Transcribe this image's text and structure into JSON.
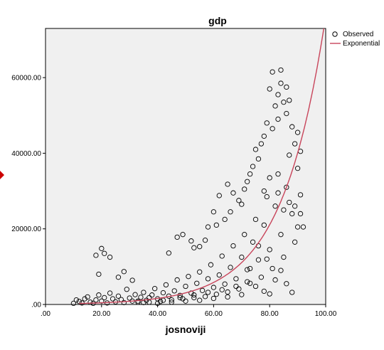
{
  "chart_data": {
    "type": "scatter",
    "title": "gdp",
    "xlabel": "josnoviji",
    "ylabel": "",
    "xlim": [
      0,
      100
    ],
    "ylim": [
      0,
      73000
    ],
    "x_ticks": [
      ".00",
      "20.00",
      "40.00",
      "60.00",
      "80.00",
      "100.00"
    ],
    "y_ticks": [
      ".00",
      "20000.00",
      "40000.00",
      "60000.00"
    ],
    "grid": false,
    "legend_position": "top-right",
    "series": [
      {
        "name": "Observed",
        "kind": "points",
        "marker": "open-circle",
        "color": "#000000",
        "points": [
          [
            12,
            800
          ],
          [
            14,
            1500
          ],
          [
            16,
            600
          ],
          [
            18,
            1200
          ],
          [
            19,
            2500
          ],
          [
            20,
            900
          ],
          [
            21,
            1800
          ],
          [
            22,
            400
          ],
          [
            23,
            3000
          ],
          [
            24,
            1500
          ],
          [
            25,
            700
          ],
          [
            26,
            2200
          ],
          [
            27,
            1300
          ],
          [
            28,
            500
          ],
          [
            29,
            4000
          ],
          [
            30,
            1700
          ],
          [
            31,
            900
          ],
          [
            32,
            2600
          ],
          [
            33,
            600
          ],
          [
            34,
            1900
          ],
          [
            35,
            3200
          ],
          [
            36,
            1100
          ],
          [
            37,
            600
          ],
          [
            38,
            2500
          ],
          [
            39,
            4200
          ],
          [
            40,
            1500
          ],
          [
            41,
            800
          ],
          [
            42,
            3100
          ],
          [
            43,
            5200
          ],
          [
            44,
            2200
          ],
          [
            45,
            1200
          ],
          [
            46,
            3600
          ],
          [
            47,
            6500
          ],
          [
            48,
            2400
          ],
          [
            49,
            1500
          ],
          [
            50,
            4800
          ],
          [
            51,
            7400
          ],
          [
            52,
            3000
          ],
          [
            53,
            1800
          ],
          [
            54,
            5600
          ],
          [
            55,
            8600
          ],
          [
            56,
            3700
          ],
          [
            57,
            2100
          ],
          [
            58,
            6800
          ],
          [
            59,
            10500
          ],
          [
            60,
            4500
          ],
          [
            61,
            2700
          ],
          [
            62,
            7800
          ],
          [
            63,
            12800
          ],
          [
            64,
            5400
          ],
          [
            65,
            3300
          ],
          [
            66,
            9800
          ],
          [
            67,
            15500
          ],
          [
            68,
            6800
          ],
          [
            69,
            4100
          ],
          [
            70,
            12500
          ],
          [
            71,
            18500
          ],
          [
            72,
            9200
          ],
          [
            73,
            5600
          ],
          [
            74,
            16500
          ],
          [
            75,
            22500
          ],
          [
            76,
            11800
          ],
          [
            77,
            7200
          ],
          [
            78,
            21000
          ],
          [
            79,
            28500
          ],
          [
            80,
            14500
          ],
          [
            81,
            9500
          ],
          [
            82,
            26000
          ],
          [
            83,
            34500
          ],
          [
            84,
            18500
          ],
          [
            85,
            12500
          ],
          [
            86,
            31000
          ],
          [
            87,
            39500
          ],
          [
            88,
            24000
          ],
          [
            89,
            16500
          ],
          [
            90,
            36000
          ],
          [
            91,
            29000
          ],
          [
            92,
            20500
          ],
          [
            18,
            13000
          ],
          [
            20,
            14800
          ],
          [
            21,
            13500
          ],
          [
            23,
            12500
          ],
          [
            19,
            8000
          ],
          [
            26,
            7200
          ],
          [
            28,
            8700
          ],
          [
            31,
            6400
          ],
          [
            44,
            13600
          ],
          [
            47,
            17800
          ],
          [
            49,
            18500
          ],
          [
            52,
            16800
          ],
          [
            55,
            15300
          ],
          [
            58,
            20500
          ],
          [
            60,
            24500
          ],
          [
            62,
            28800
          ],
          [
            65,
            31800
          ],
          [
            67,
            29500
          ],
          [
            70,
            26500
          ],
          [
            72,
            32500
          ],
          [
            74,
            36500
          ],
          [
            76,
            38500
          ],
          [
            78,
            44500
          ],
          [
            79,
            48000
          ],
          [
            81,
            46500
          ],
          [
            82,
            52500
          ],
          [
            83,
            55500
          ],
          [
            84,
            58500
          ],
          [
            85,
            53500
          ],
          [
            86,
            57500
          ],
          [
            87,
            54000
          ],
          [
            81,
            61500
          ],
          [
            84,
            62000
          ],
          [
            80,
            57000
          ],
          [
            83,
            49000
          ],
          [
            86,
            50500
          ],
          [
            88,
            47000
          ],
          [
            89,
            42500
          ],
          [
            90,
            45500
          ],
          [
            91,
            40500
          ],
          [
            77,
            42500
          ],
          [
            75,
            41000
          ],
          [
            73,
            34500
          ],
          [
            71,
            30500
          ],
          [
            69,
            27500
          ],
          [
            66,
            24500
          ],
          [
            64,
            22500
          ],
          [
            61,
            21000
          ],
          [
            57,
            17000
          ],
          [
            53,
            15000
          ],
          [
            72,
            6000
          ],
          [
            75,
            4800
          ],
          [
            78,
            3500
          ],
          [
            80,
            2800
          ],
          [
            82,
            6500
          ],
          [
            86,
            5500
          ],
          [
            88,
            3200
          ],
          [
            90,
            20500
          ],
          [
            84,
            9000
          ],
          [
            79,
            12000
          ],
          [
            10,
            300
          ],
          [
            11,
            1200
          ],
          [
            13,
            400
          ],
          [
            15,
            2000
          ],
          [
            17,
            300
          ],
          [
            35,
            500
          ],
          [
            40,
            300
          ],
          [
            45,
            600
          ],
          [
            50,
            900
          ],
          [
            55,
            1100
          ],
          [
            60,
            1600
          ],
          [
            65,
            2000
          ],
          [
            70,
            2600
          ],
          [
            33,
            900
          ],
          [
            37,
            1800
          ],
          [
            42,
            1100
          ],
          [
            48,
            1800
          ],
          [
            53,
            2500
          ],
          [
            58,
            3200
          ],
          [
            63,
            3900
          ],
          [
            68,
            4800
          ],
          [
            73,
            9500
          ],
          [
            76,
            15500
          ],
          [
            85,
            25000
          ],
          [
            87,
            27000
          ],
          [
            89,
            26000
          ],
          [
            91,
            24000
          ],
          [
            83,
            29500
          ],
          [
            80,
            33500
          ],
          [
            78,
            30000
          ]
        ]
      },
      {
        "name": "Exponential",
        "kind": "curve",
        "color": "#c8445a",
        "equation": "y = 123 * exp(0.0643 * x)",
        "b0": 123,
        "b1": 0.0643
      }
    ]
  }
}
